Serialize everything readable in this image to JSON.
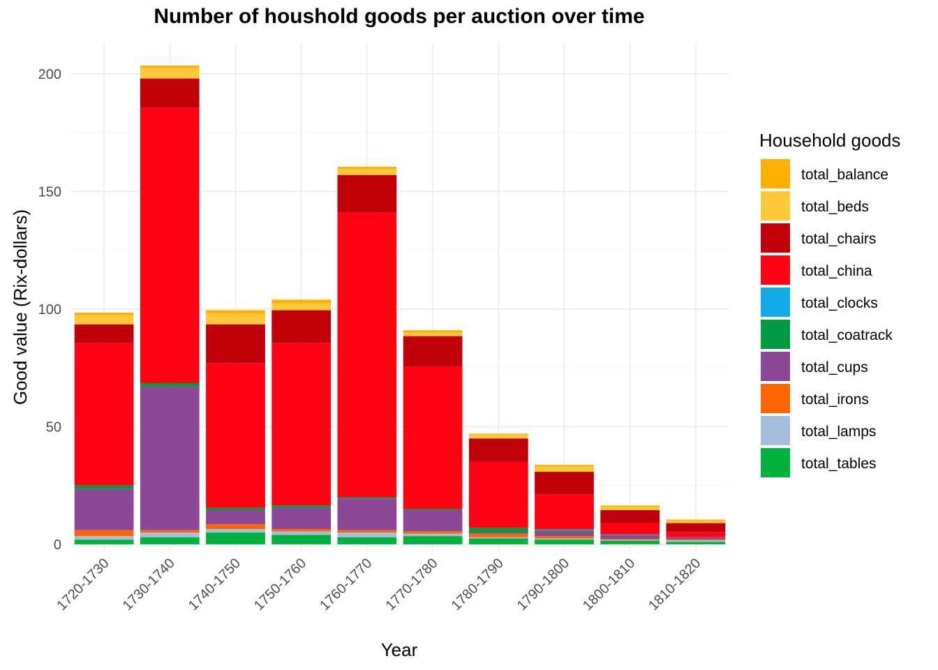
{
  "chart_data": {
    "type": "bar",
    "stacked": true,
    "title": "Number of houshold goods per auction over time",
    "xlabel": "Year",
    "ylabel": "Good value (Rix-dollars)",
    "ylim": [
      -3,
      213
    ],
    "yticks": [
      0,
      50,
      100,
      150,
      200
    ],
    "grid": true,
    "legend": {
      "title": "Household goods",
      "placement": "right"
    },
    "categories": [
      "1720-1730",
      "1730-1740",
      "1740-1750",
      "1750-1760",
      "1760-1770",
      "1770-1780",
      "1780-1790",
      "1790-1800",
      "1800-1810",
      "1810-1820"
    ],
    "series": [
      {
        "name": "total_tables",
        "color": "#00b140",
        "values": [
          2,
          3,
          5,
          4,
          3,
          3.5,
          2.5,
          2,
          1.5,
          1
        ]
      },
      {
        "name": "total_lamps",
        "color": "#a6bddb",
        "values": [
          1.5,
          2,
          1.5,
          1.5,
          2,
          1,
          0.5,
          0.5,
          0.3,
          0.7
        ]
      },
      {
        "name": "total_irons",
        "color": "#ff6600",
        "values": [
          2.5,
          1,
          2,
          1,
          1,
          1,
          1.5,
          1,
          0.5,
          0.5
        ]
      },
      {
        "name": "total_cups",
        "color": "#8b4897",
        "values": [
          17.5,
          61,
          6,
          9,
          13.5,
          9,
          0.5,
          2,
          1.5,
          1
        ]
      },
      {
        "name": "total_coatrack",
        "color": "#009944",
        "values": [
          1.5,
          1.5,
          1,
          1,
          0.5,
          0.5,
          2,
          0.5,
          0.2,
          0
        ]
      },
      {
        "name": "total_clocks",
        "color": "#12a9e8",
        "values": [
          0,
          0,
          0,
          0,
          0,
          0,
          0,
          0.3,
          0.2,
          0
        ]
      },
      {
        "name": "total_china",
        "color": "#ff0313",
        "values": [
          60.5,
          117,
          61.5,
          69,
          121,
          60.5,
          28,
          15,
          4.8,
          2
        ]
      },
      {
        "name": "total_chairs",
        "color": "#c0000b",
        "values": [
          8,
          12.5,
          16.5,
          14,
          16,
          13,
          10,
          9.5,
          5.5,
          3.8
        ]
      },
      {
        "name": "total_beds",
        "color": "#ffc83a",
        "values": [
          4,
          4.5,
          4.5,
          3,
          2.5,
          1.5,
          1.5,
          2.5,
          1.5,
          1
        ]
      },
      {
        "name": "total_balance",
        "color": "#ffb000",
        "values": [
          1,
          1,
          1.5,
          1.5,
          1,
          1,
          0.5,
          0.5,
          0.5,
          0.5
        ]
      }
    ],
    "legend_order": [
      "total_balance",
      "total_beds",
      "total_chairs",
      "total_china",
      "total_clocks",
      "total_coatrack",
      "total_cups",
      "total_irons",
      "total_lamps",
      "total_tables"
    ]
  }
}
